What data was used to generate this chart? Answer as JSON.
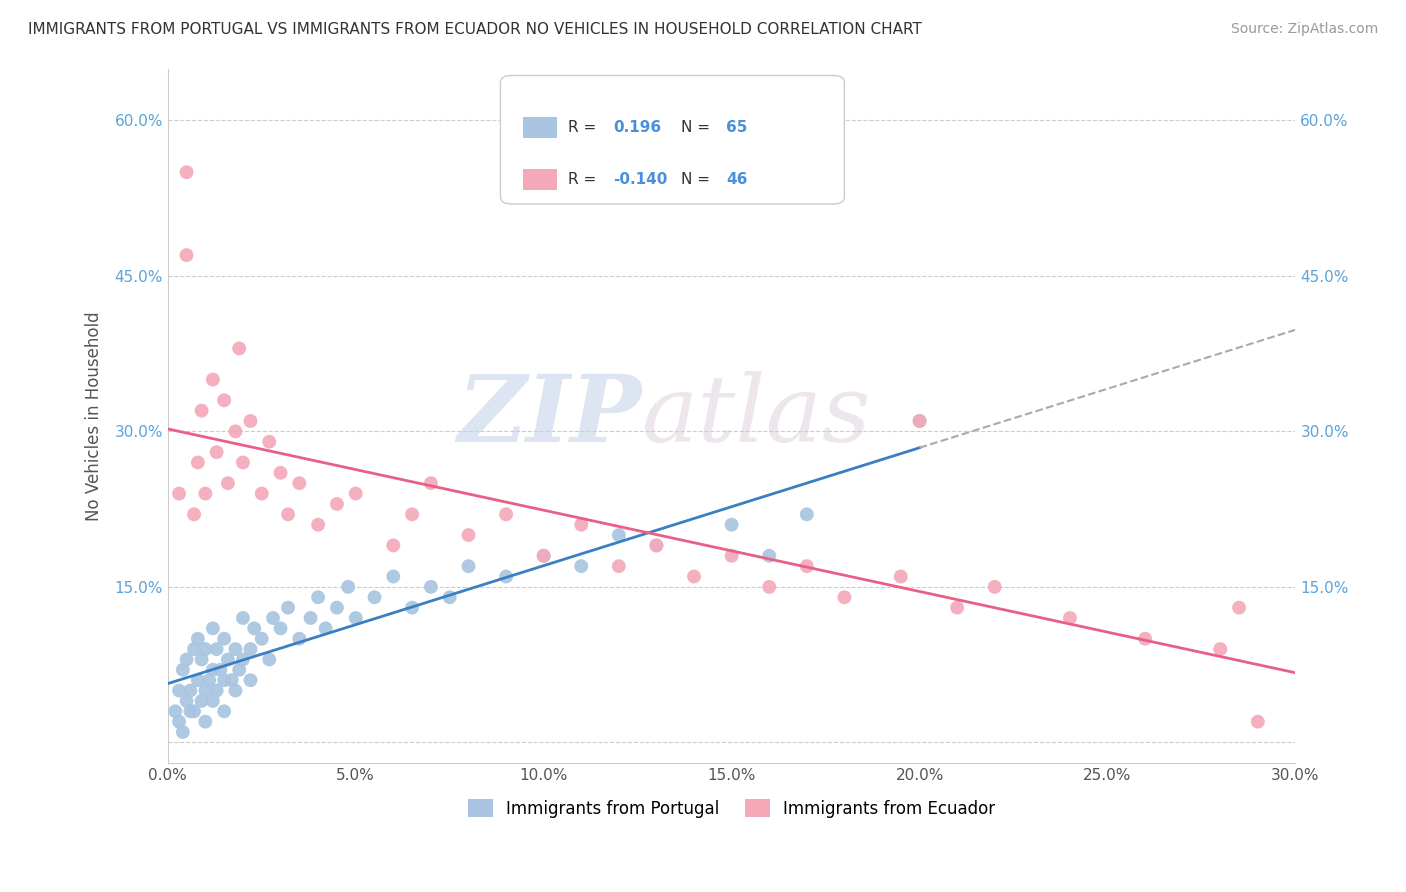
{
  "title": "IMMIGRANTS FROM PORTUGAL VS IMMIGRANTS FROM ECUADOR NO VEHICLES IN HOUSEHOLD CORRELATION CHART",
  "source": "Source: ZipAtlas.com",
  "ylabel": "No Vehicles in Household",
  "xlim": [
    0.0,
    0.3
  ],
  "ylim": [
    -0.02,
    0.65
  ],
  "yticks": [
    0.0,
    0.15,
    0.3,
    0.45,
    0.6
  ],
  "ytick_labels": [
    "",
    "15.0%",
    "30.0%",
    "45.0%",
    "60.0%"
  ],
  "xticks": [
    0.0,
    0.05,
    0.1,
    0.15,
    0.2,
    0.25,
    0.3
  ],
  "portugal_color": "#a8c4e0",
  "ecuador_color": "#f4a8b8",
  "portugal_line_color": "#3a7fc1",
  "ecuador_line_color": "#e8608a",
  "dash_line_color": "#aaaaaa",
  "r_portugal": "0.196",
  "n_portugal": "65",
  "r_ecuador": "-0.140",
  "n_ecuador": "46",
  "watermark_zip": "ZIP",
  "watermark_atlas": "atlas",
  "portugal_scatter_x": [
    0.002,
    0.003,
    0.004,
    0.005,
    0.005,
    0.006,
    0.007,
    0.007,
    0.008,
    0.008,
    0.009,
    0.009,
    0.01,
    0.01,
    0.011,
    0.012,
    0.012,
    0.013,
    0.013,
    0.014,
    0.015,
    0.015,
    0.016,
    0.017,
    0.018,
    0.019,
    0.02,
    0.02,
    0.022,
    0.023,
    0.025,
    0.027,
    0.028,
    0.03,
    0.032,
    0.035,
    0.038,
    0.04,
    0.042,
    0.045,
    0.048,
    0.05,
    0.055,
    0.06,
    0.065,
    0.07,
    0.075,
    0.08,
    0.09,
    0.1,
    0.11,
    0.12,
    0.13,
    0.15,
    0.16,
    0.17,
    0.003,
    0.004,
    0.006,
    0.01,
    0.012,
    0.015,
    0.018,
    0.022,
    0.2
  ],
  "portugal_scatter_y": [
    0.03,
    0.05,
    0.07,
    0.04,
    0.08,
    0.05,
    0.03,
    0.09,
    0.06,
    0.1,
    0.04,
    0.08,
    0.05,
    0.09,
    0.06,
    0.07,
    0.11,
    0.05,
    0.09,
    0.07,
    0.06,
    0.1,
    0.08,
    0.06,
    0.09,
    0.07,
    0.08,
    0.12,
    0.09,
    0.11,
    0.1,
    0.08,
    0.12,
    0.11,
    0.13,
    0.1,
    0.12,
    0.14,
    0.11,
    0.13,
    0.15,
    0.12,
    0.14,
    0.16,
    0.13,
    0.15,
    0.14,
    0.17,
    0.16,
    0.18,
    0.17,
    0.2,
    0.19,
    0.21,
    0.18,
    0.22,
    0.02,
    0.01,
    0.03,
    0.02,
    0.04,
    0.03,
    0.05,
    0.06,
    0.31
  ],
  "ecuador_scatter_x": [
    0.003,
    0.005,
    0.007,
    0.008,
    0.009,
    0.01,
    0.012,
    0.013,
    0.015,
    0.016,
    0.018,
    0.019,
    0.02,
    0.022,
    0.025,
    0.027,
    0.03,
    0.032,
    0.035,
    0.04,
    0.045,
    0.05,
    0.06,
    0.065,
    0.07,
    0.08,
    0.09,
    0.1,
    0.11,
    0.12,
    0.13,
    0.14,
    0.15,
    0.16,
    0.17,
    0.18,
    0.195,
    0.2,
    0.21,
    0.22,
    0.24,
    0.26,
    0.28,
    0.285,
    0.29,
    0.005
  ],
  "ecuador_scatter_y": [
    0.24,
    0.47,
    0.22,
    0.27,
    0.32,
    0.24,
    0.35,
    0.28,
    0.33,
    0.25,
    0.3,
    0.38,
    0.27,
    0.31,
    0.24,
    0.29,
    0.26,
    0.22,
    0.25,
    0.21,
    0.23,
    0.24,
    0.19,
    0.22,
    0.25,
    0.2,
    0.22,
    0.18,
    0.21,
    0.17,
    0.19,
    0.16,
    0.18,
    0.15,
    0.17,
    0.14,
    0.16,
    0.31,
    0.13,
    0.15,
    0.12,
    0.1,
    0.09,
    0.13,
    0.02,
    0.55
  ]
}
